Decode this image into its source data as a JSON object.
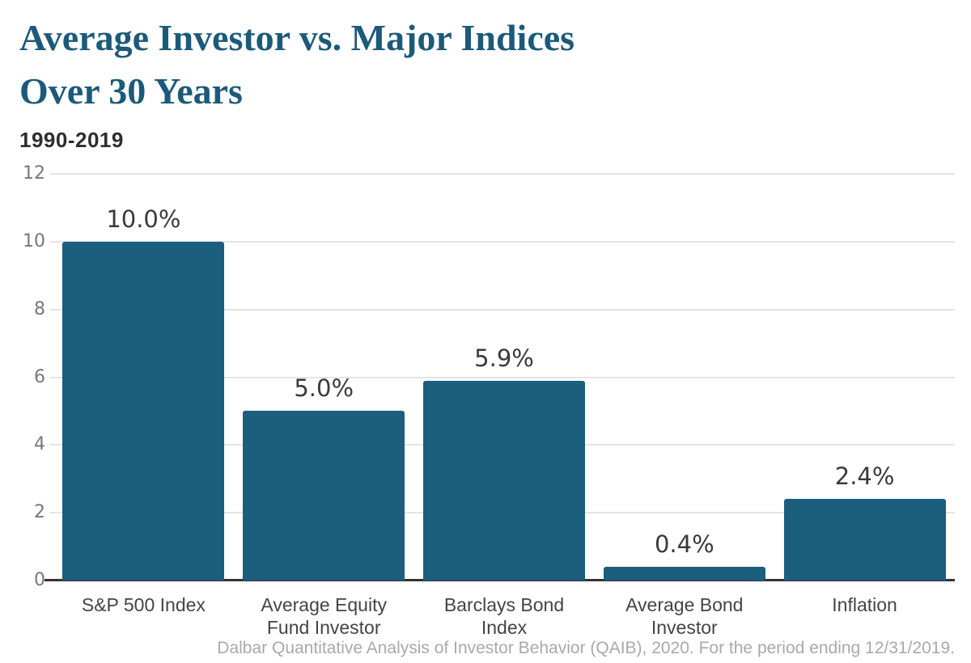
{
  "header": {
    "title": "Average Investor vs. Major Indices\nOver 30 Years",
    "subtitle": "1990-2019"
  },
  "footer": {
    "caption": "Dalbar Quantitative Analysis of Investor Behavior (QAIB), 2020. For the period ending 12/31/2019."
  },
  "chart_data": {
    "type": "bar",
    "title": "Average Investor vs. Major Indices Over 30 Years",
    "subtitle": "1990-2019",
    "categories": [
      "S&P 500 Index",
      "Average Equity\nFund Investor",
      "Barclays Bond\nIndex",
      "Average Bond\nInvestor",
      "Inflation"
    ],
    "values": [
      10.0,
      5.0,
      5.9,
      0.4,
      2.4
    ],
    "value_labels": [
      "10.0%",
      "5.0%",
      "5.9%",
      "0.4%",
      "2.4%"
    ],
    "unit": "%",
    "xlabel": "",
    "ylabel": "",
    "ylim": [
      0,
      12
    ],
    "yticks": [
      0,
      2,
      4,
      6,
      8,
      10,
      12
    ],
    "grid": true,
    "legend_position": "none",
    "caption": "Dalbar Quantitative Analysis of Investor Behavior (QAIB), 2020. For the period ending 12/31/2019."
  },
  "colors": {
    "background": "#FFFFFF",
    "title": "#1C5A7A",
    "bar": "#1B5E7E",
    "grid": "#E4E4E4",
    "axis_line": "#333333",
    "tick_label": "#777777",
    "category_label": "#444444",
    "value_label": "#3A3A3A",
    "caption": "#A9A9A9"
  }
}
